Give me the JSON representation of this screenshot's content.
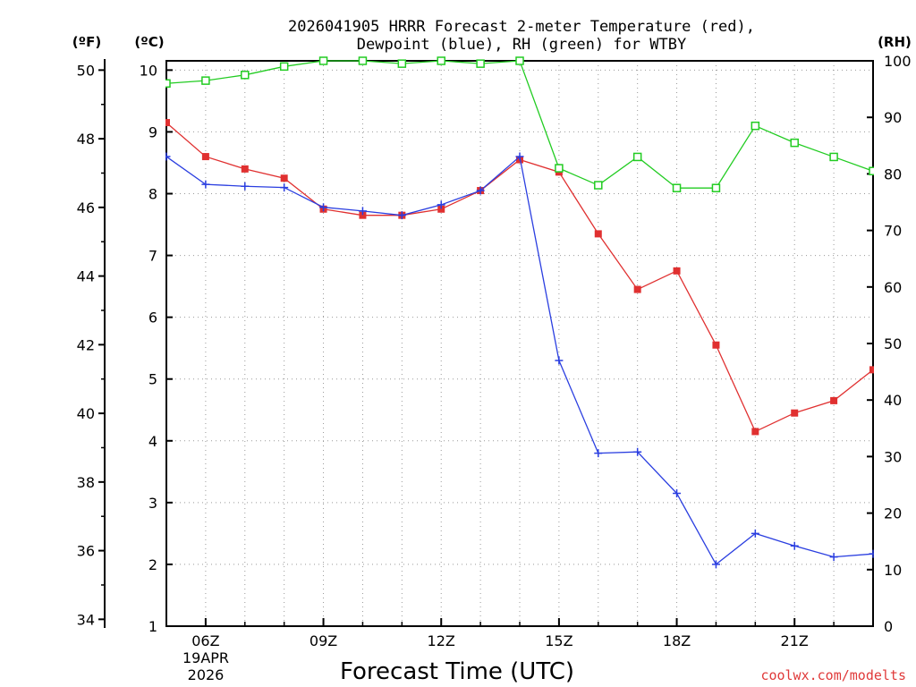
{
  "chart_data": {
    "type": "line",
    "title_line1": "2026041905 HRRR Forecast 2-meter Temperature (red),",
    "title_line2": "Dewpoint (blue), RH (green) for WTBY",
    "xlabel": "Forecast Time (UTC)",
    "watermark": "coolwx.com/modelts",
    "left_axis_f_label": "(ºF)",
    "left_axis_c_label": "(ºC)",
    "right_axis_label": "(RH)",
    "x_range_hours": [
      5,
      23
    ],
    "x_ticks": [
      {
        "hour": 6,
        "label": "06Z"
      },
      {
        "hour": 9,
        "label": "09Z"
      },
      {
        "hour": 12,
        "label": "12Z"
      },
      {
        "hour": 15,
        "label": "15Z"
      },
      {
        "hour": 18,
        "label": "18Z"
      },
      {
        "hour": 21,
        "label": "21Z"
      }
    ],
    "date_label_line1": "19APR",
    "date_label_line2": "2026",
    "ylim_c": [
      1,
      10.15
    ],
    "yticks_c": [
      "1",
      "2",
      "3",
      "4",
      "5",
      "6",
      "7",
      "8",
      "9",
      "10"
    ],
    "yticks_f": [
      "34",
      "36",
      "38",
      "40",
      "42",
      "44",
      "46",
      "48",
      "50"
    ],
    "ylim_rh": [
      0,
      100
    ],
    "yticks_rh": [
      "0",
      "10",
      "20",
      "30",
      "40",
      "50",
      "60",
      "70",
      "80",
      "90",
      "100"
    ],
    "colors": {
      "temperature": "#e03030",
      "dewpoint": "#2a3ee0",
      "rh": "#22cc22",
      "grid": "#999999"
    },
    "series": [
      {
        "name": "Temperature (°C)",
        "axis": "c",
        "x": [
          5,
          6,
          7,
          8,
          9,
          10,
          11,
          12,
          13,
          14,
          15,
          16,
          17,
          18,
          19,
          20,
          21,
          22,
          23
        ],
        "values": [
          9.15,
          8.6,
          8.4,
          8.25,
          7.75,
          7.65,
          7.65,
          7.75,
          8.05,
          8.55,
          8.35,
          7.35,
          6.45,
          6.75,
          5.55,
          4.15,
          4.45,
          4.65,
          5.15
        ]
      },
      {
        "name": "Dewpoint (°C)",
        "axis": "c",
        "x": [
          5,
          6,
          7,
          8,
          9,
          10,
          11,
          12,
          13,
          14,
          15,
          16,
          17,
          18,
          19,
          20,
          21,
          22,
          23
        ],
        "values": [
          8.6,
          8.15,
          8.12,
          8.1,
          7.78,
          7.72,
          7.65,
          7.82,
          8.05,
          8.6,
          5.3,
          3.8,
          3.82,
          3.15,
          2.0,
          2.5,
          2.3,
          2.12,
          2.17
        ]
      },
      {
        "name": "RH (%)",
        "axis": "rh",
        "x": [
          5,
          6,
          7,
          8,
          9,
          10,
          11,
          12,
          13,
          14,
          15,
          16,
          17,
          18,
          19,
          20,
          21,
          22,
          23
        ],
        "values": [
          96,
          96.5,
          97.5,
          99,
          100,
          100,
          99.5,
          100,
          99.5,
          100,
          81,
          78,
          83,
          77.5,
          77.5,
          88.5,
          85.5,
          83,
          80.5
        ]
      }
    ]
  }
}
